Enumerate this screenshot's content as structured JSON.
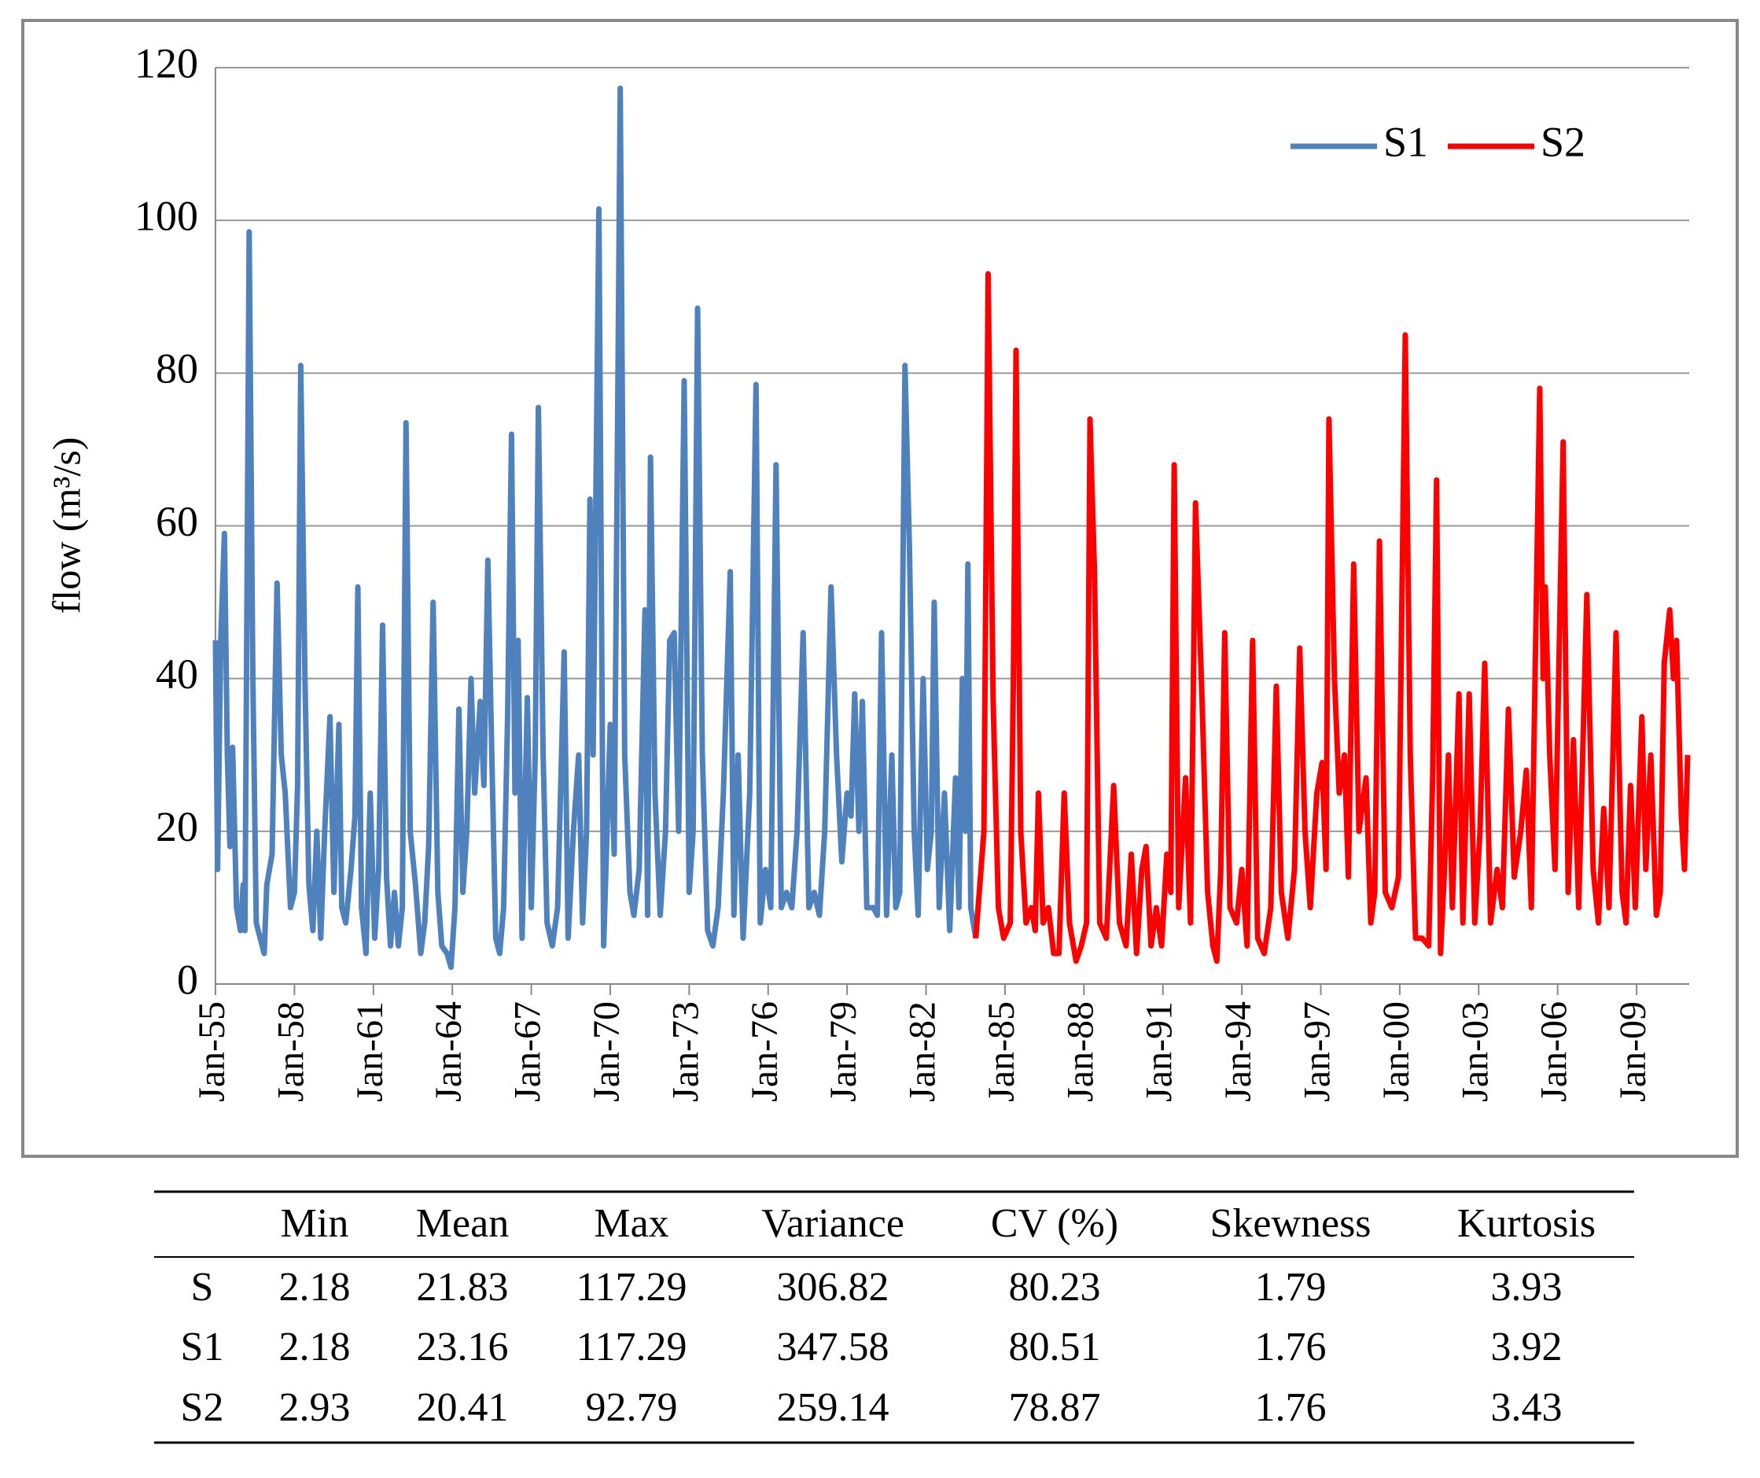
{
  "chart_data": {
    "type": "line",
    "ylabel": "flow (m³/s)",
    "xlim": [
      1955,
      2011
    ],
    "ylim": [
      0,
      120
    ],
    "yticks": [
      0,
      20,
      40,
      60,
      80,
      100,
      120
    ],
    "xticks": [
      {
        "value": 1955,
        "label": "Jan-55"
      },
      {
        "value": 1958,
        "label": "Jan-58"
      },
      {
        "value": 1961,
        "label": "Jan-61"
      },
      {
        "value": 1964,
        "label": "Jan-64"
      },
      {
        "value": 1967,
        "label": "Jan-67"
      },
      {
        "value": 1970,
        "label": "Jan-70"
      },
      {
        "value": 1973,
        "label": "Jan-73"
      },
      {
        "value": 1976,
        "label": "Jan-76"
      },
      {
        "value": 1979,
        "label": "Jan-79"
      },
      {
        "value": 1982,
        "label": "Jan-82"
      },
      {
        "value": 1985,
        "label": "Jan-85"
      },
      {
        "value": 1988,
        "label": "Jan-88"
      },
      {
        "value": 1991,
        "label": "Jan-91"
      },
      {
        "value": 1994,
        "label": "Jan-94"
      },
      {
        "value": 1997,
        "label": "Jan-97"
      },
      {
        "value": 2000,
        "label": "Jan-00"
      },
      {
        "value": 2003,
        "label": "Jan-03"
      },
      {
        "value": 2006,
        "label": "Jan-06"
      },
      {
        "value": 2009,
        "label": "Jan-09"
      }
    ],
    "grid": true,
    "legend": "upper right",
    "series": [
      {
        "name": "S1",
        "color": "#4f81bd",
        "x": [
          1955.0,
          1955.08,
          1955.2,
          1955.34,
          1955.45,
          1955.55,
          1955.65,
          1955.8,
          1955.95,
          1956.05,
          1956.12,
          1956.28,
          1956.42,
          1956.55,
          1956.7,
          1956.85,
          1956.95,
          1957.15,
          1957.34,
          1957.5,
          1957.65,
          1957.85,
          1958.0,
          1958.12,
          1958.24,
          1958.4,
          1958.55,
          1958.7,
          1958.85,
          1959.0,
          1959.15,
          1959.35,
          1959.5,
          1959.69,
          1959.8,
          1959.95,
          1960.15,
          1960.3,
          1960.41,
          1960.55,
          1960.72,
          1960.88,
          1961.05,
          1961.2,
          1961.35,
          1961.5,
          1961.65,
          1961.8,
          1961.95,
          1962.1,
          1962.24,
          1962.4,
          1962.6,
          1962.8,
          1962.95,
          1963.1,
          1963.27,
          1963.45,
          1963.6,
          1963.8,
          1963.95,
          1964.1,
          1964.25,
          1964.4,
          1964.55,
          1964.71,
          1964.85,
          1965.06,
          1965.2,
          1965.35,
          1965.5,
          1965.65,
          1965.8,
          1965.95,
          1966.1,
          1966.25,
          1966.38,
          1966.5,
          1966.65,
          1966.85,
          1967.0,
          1967.15,
          1967.27,
          1967.45,
          1967.6,
          1967.8,
          1968.0,
          1968.25,
          1968.4,
          1968.6,
          1968.8,
          1968.95,
          1969.1,
          1969.23,
          1969.35,
          1969.57,
          1969.75,
          1970.0,
          1970.15,
          1970.38,
          1970.55,
          1970.75,
          1970.9,
          1971.1,
          1971.32,
          1971.42,
          1971.53,
          1971.7,
          1971.9,
          1972.1,
          1972.26,
          1972.43,
          1972.6,
          1972.81,
          1973.0,
          1973.15,
          1973.32,
          1973.5,
          1973.7,
          1973.9,
          1974.1,
          1974.3,
          1974.56,
          1974.7,
          1974.86,
          1975.05,
          1975.3,
          1975.54,
          1975.7,
          1975.9,
          1976.1,
          1976.3,
          1976.5,
          1976.7,
          1976.9,
          1977.1,
          1977.33,
          1977.55,
          1977.75,
          1977.95,
          1978.15,
          1978.39,
          1978.6,
          1978.8,
          1979.0,
          1979.15,
          1979.29,
          1979.45,
          1979.58,
          1979.75,
          1980.0,
          1980.15,
          1980.31,
          1980.5,
          1980.7,
          1980.85,
          1981.0,
          1981.2,
          1981.37,
          1981.55,
          1981.7,
          1981.89,
          1982.05,
          1982.2,
          1982.31,
          1982.5,
          1982.7,
          1982.9,
          1983.12,
          1983.25,
          1983.38,
          1983.5,
          1983.59,
          1983.7,
          1983.89
        ],
        "values": [
          45,
          15,
          45,
          59,
          30,
          18,
          31,
          10,
          7,
          13,
          7,
          98.5,
          40,
          8,
          6,
          4,
          13,
          17,
          52.5,
          30,
          25,
          10,
          12,
          26,
          81,
          40,
          13,
          7,
          20,
          6,
          20,
          35,
          12,
          34,
          10,
          8,
          15,
          22,
          52,
          10,
          4,
          25,
          6,
          15,
          47,
          14,
          5,
          12,
          5,
          10,
          73.5,
          20,
          13,
          4,
          8,
          18,
          50,
          12,
          5,
          4,
          2.2,
          10,
          36,
          12,
          20,
          40,
          25,
          37,
          26,
          55.5,
          30,
          6,
          4,
          10,
          35,
          72,
          25,
          45,
          6,
          37.5,
          10,
          30,
          75.5,
          30,
          8,
          5,
          10,
          43.5,
          6,
          20,
          30,
          8,
          20,
          63.5,
          30,
          101.5,
          5,
          34,
          17,
          117.3,
          30,
          12,
          9,
          15,
          49,
          9,
          69,
          25,
          9,
          20,
          45,
          46,
          20,
          79,
          12,
          20,
          88.5,
          30,
          7,
          5,
          10,
          25,
          54,
          9,
          30,
          6,
          25,
          78.5,
          8,
          15,
          10,
          68,
          10,
          12,
          10,
          20,
          46,
          10,
          12,
          9,
          20,
          52,
          30,
          16,
          25,
          22,
          38,
          20,
          37,
          10,
          10,
          9,
          46,
          9,
          30,
          10,
          12,
          81,
          57,
          20,
          9,
          40,
          15,
          20,
          50,
          10,
          25,
          7,
          27,
          10,
          40,
          20,
          55,
          10,
          6
        ]
      },
      {
        "name": "S2",
        "color": "#ff0000",
        "x": [
          1983.89,
          1984.2,
          1984.36,
          1984.55,
          1984.75,
          1984.95,
          1985.2,
          1985.32,
          1985.42,
          1985.6,
          1985.8,
          1986.0,
          1986.15,
          1986.27,
          1986.45,
          1986.65,
          1986.85,
          1987.05,
          1987.25,
          1987.45,
          1987.7,
          1987.9,
          1988.1,
          1988.23,
          1988.4,
          1988.6,
          1988.85,
          1989.13,
          1989.35,
          1989.6,
          1989.8,
          1990.0,
          1990.2,
          1990.36,
          1990.55,
          1990.75,
          1990.95,
          1991.15,
          1991.3,
          1991.43,
          1991.6,
          1991.86,
          1992.05,
          1992.24,
          1992.49,
          1992.7,
          1992.9,
          1993.05,
          1993.2,
          1993.35,
          1993.55,
          1993.8,
          1994.0,
          1994.2,
          1994.41,
          1994.6,
          1994.85,
          1995.1,
          1995.31,
          1995.5,
          1995.75,
          1996.0,
          1996.2,
          1996.4,
          1996.6,
          1996.85,
          1997.05,
          1997.2,
          1997.31,
          1997.52,
          1997.7,
          1997.9,
          1998.05,
          1998.25,
          1998.45,
          1998.72,
          1998.9,
          1999.05,
          1999.23,
          1999.45,
          1999.7,
          1999.95,
          2000.21,
          2000.4,
          2000.6,
          2000.85,
          2001.1,
          2001.25,
          2001.4,
          2001.55,
          2001.7,
          2001.85,
          2002.0,
          2002.25,
          2002.4,
          2002.64,
          2002.85,
          2003.05,
          2003.23,
          2003.45,
          2003.7,
          2003.9,
          2004.13,
          2004.35,
          2004.6,
          2004.81,
          2005.0,
          2005.32,
          2005.45,
          2005.53,
          2005.7,
          2005.9,
          2006.21,
          2006.4,
          2006.6,
          2006.8,
          2007.11,
          2007.35,
          2007.55,
          2007.75,
          2007.95,
          2008.22,
          2008.45,
          2008.6,
          2008.77,
          2008.95,
          2009.2,
          2009.35,
          2009.54,
          2009.75,
          2009.9,
          2010.05,
          2010.26,
          2010.4,
          2010.52,
          2010.7,
          2010.82,
          2010.94
        ],
        "values": [
          6,
          20,
          93,
          37,
          10,
          6,
          8,
          40,
          83,
          20,
          8,
          10,
          7,
          25,
          8,
          10,
          4,
          4,
          25,
          8,
          3,
          5,
          8,
          74,
          54,
          8,
          6,
          26,
          8,
          5,
          17,
          4,
          15,
          18,
          5,
          10,
          5,
          17,
          12,
          68,
          10,
          27,
          8,
          63,
          37,
          12,
          5,
          3,
          15,
          46,
          10,
          8,
          15,
          5,
          45,
          6,
          4,
          10,
          39,
          12,
          6,
          15,
          44,
          20,
          10,
          25,
          29,
          15,
          74,
          40,
          25,
          30,
          14,
          55,
          20,
          27,
          8,
          12,
          58,
          12,
          10,
          14,
          85,
          30,
          6,
          6,
          5,
          27,
          66,
          4,
          15,
          30,
          10,
          38,
          8,
          38,
          8,
          20,
          42,
          8,
          15,
          10,
          36,
          14,
          20,
          28,
          10,
          78,
          40,
          52,
          30,
          15,
          71,
          12,
          32,
          10,
          51,
          15,
          8,
          23,
          10,
          46,
          12,
          8,
          26,
          10,
          35,
          15,
          30,
          9,
          12,
          42,
          49,
          40,
          45,
          22,
          15,
          30
        ]
      }
    ]
  },
  "table": {
    "columns": [
      "Min",
      "Mean",
      "Max",
      "Variance",
      "CV (%)",
      "Skewness",
      "Kurtosis"
    ],
    "rows": [
      {
        "label": "S",
        "values": [
          "2.18",
          "21.83",
          "117.29",
          "306.82",
          "80.23",
          "1.79",
          "3.93"
        ]
      },
      {
        "label": "S1",
        "values": [
          "2.18",
          "23.16",
          "117.29",
          "347.58",
          "80.51",
          "1.76",
          "3.92"
        ]
      },
      {
        "label": "S2",
        "values": [
          "2.93",
          "20.41",
          "92.79",
          "259.14",
          "78.87",
          "1.76",
          "3.43"
        ]
      }
    ]
  }
}
